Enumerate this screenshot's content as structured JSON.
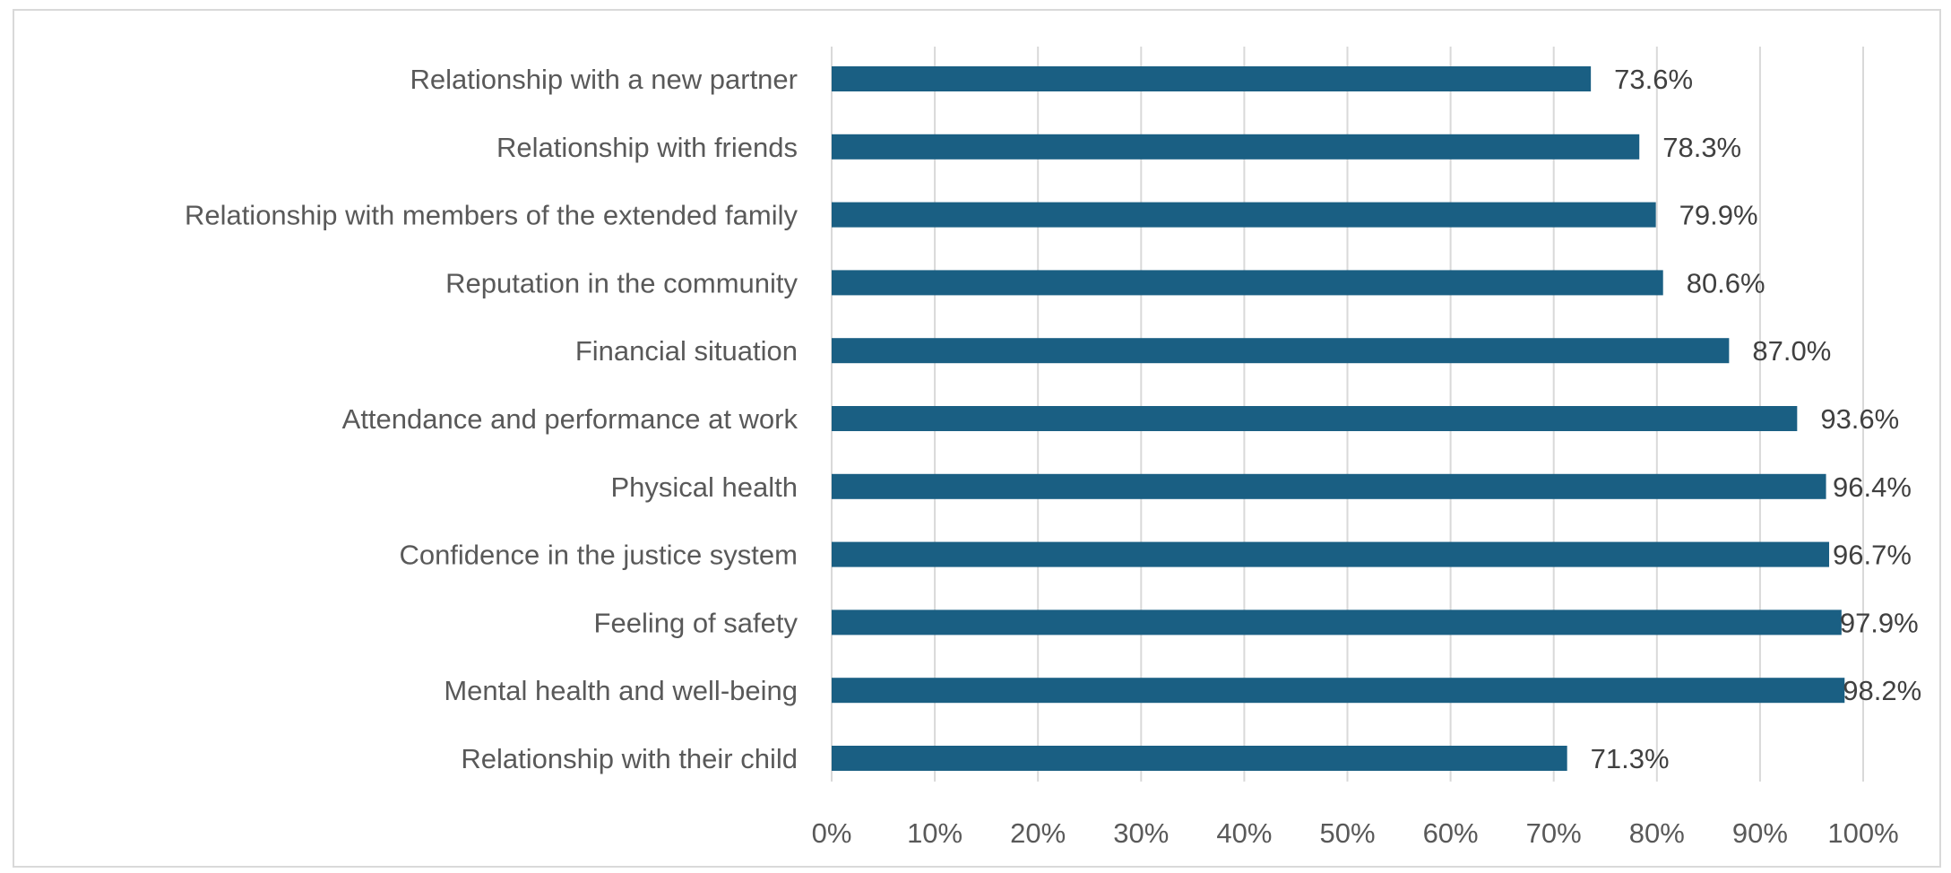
{
  "chart_data": {
    "type": "bar",
    "orientation": "horizontal",
    "categories": [
      "Relationship with a new partner",
      "Relationship with friends",
      "Relationship with members of the extended family",
      "Reputation in the community",
      "Financial situation",
      "Attendance and performance at work",
      "Physical health",
      "Confidence in the justice system",
      "Feeling of safety",
      "Mental health and well-being",
      "Relationship with their child"
    ],
    "values": [
      73.6,
      78.3,
      79.9,
      80.6,
      87.0,
      93.6,
      96.4,
      96.7,
      97.9,
      98.2,
      71.3
    ],
    "data_labels": [
      "73.6%",
      "78.3%",
      "79.9%",
      "80.6%",
      "87.0%",
      "93.6%",
      "96.4%",
      "96.7%",
      "97.9%",
      "98.2%",
      "71.3%"
    ],
    "xlim": [
      0,
      100
    ],
    "xticks": [
      0,
      10,
      20,
      30,
      40,
      50,
      60,
      70,
      80,
      90,
      100
    ],
    "xtick_labels": [
      "0%",
      "10%",
      "20%",
      "30%",
      "40%",
      "50%",
      "60%",
      "70%",
      "80%",
      "90%",
      "100%"
    ],
    "grid": true,
    "legend": "none",
    "title": "",
    "xlabel": "",
    "ylabel": "",
    "colors": {
      "bar": "#1a5f83",
      "grid": "#d9d9d9",
      "axis_text": "#595959",
      "data_label_text": "#404040"
    }
  }
}
